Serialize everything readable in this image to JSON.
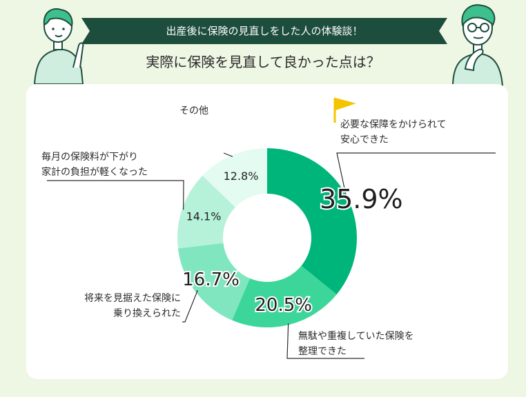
{
  "banner": {
    "title": "出産後に保険の見直しをした人の体験談！"
  },
  "headline": "実際に保険を見直して良かった点は？",
  "colors": {
    "background": "#eef6e4",
    "banner": "#1d4d3c",
    "accent_flag": "#f5c400",
    "slices": [
      "#00b57a",
      "#3dd69a",
      "#7fe6bf",
      "#b6f2d9",
      "#e3fbf1"
    ]
  },
  "chart_data": {
    "type": "pie",
    "variant": "donut",
    "start": "top, clockwise",
    "slices": [
      {
        "label_lines": [
          "必要な保障をかけられて",
          "安心できた"
        ],
        "value": 35.9,
        "value_label": "35.9%"
      },
      {
        "label_lines": [
          "無駄や重複していた保険を",
          "整理できた"
        ],
        "value": 20.5,
        "value_label": "20.5%"
      },
      {
        "label_lines": [
          "将来を見据えた保険に",
          "乗り換えられた"
        ],
        "value": 16.7,
        "value_label": "16.7%"
      },
      {
        "label_lines": [
          "毎月の保険料が下がり",
          "家計の負担が軽くなった"
        ],
        "value": 14.1,
        "value_label": "14.1%"
      },
      {
        "label_lines": [
          "その他"
        ],
        "value": 12.8,
        "value_label": "12.8%"
      }
    ],
    "highlight_icon": "flag-icon"
  }
}
